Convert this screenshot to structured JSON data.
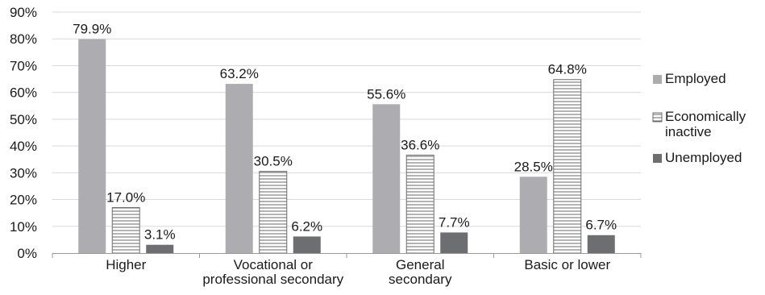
{
  "chart_data": {
    "type": "bar",
    "title": "",
    "xlabel": "",
    "ylabel": "",
    "ylim": [
      0,
      90
    ],
    "ytick_step": 10,
    "ytick_format": "percent",
    "grid": true,
    "legend_position": "right",
    "categories": [
      [
        "Higher"
      ],
      [
        "Vocational or",
        "professional secondary"
      ],
      [
        "General",
        "secondary"
      ],
      [
        "Basic or lower"
      ]
    ],
    "series": [
      {
        "name": "Employed",
        "values": [
          79.9,
          63.2,
          55.6,
          28.5
        ],
        "labels": [
          "79.9%",
          "63.2%",
          "55.6%",
          "28.5%"
        ],
        "color": "#adadb1",
        "pattern": "solid",
        "legend_lines": [
          "Employed"
        ]
      },
      {
        "name": "Economically inactive",
        "values": [
          17.0,
          30.5,
          36.6,
          64.8
        ],
        "labels": [
          "17.0%",
          "30.5%",
          "36.6%",
          "64.8%"
        ],
        "color": "#ffffff",
        "pattern": "horizontal-lines",
        "legend_lines": [
          "Economically",
          "inactive"
        ]
      },
      {
        "name": "Unemployed",
        "values": [
          3.1,
          6.2,
          7.7,
          6.7
        ],
        "labels": [
          "3.1%",
          "6.2%",
          "7.7%",
          "6.7%"
        ],
        "color": "#6d6e71",
        "pattern": "solid",
        "legend_lines": [
          "Unemployed"
        ]
      }
    ]
  }
}
